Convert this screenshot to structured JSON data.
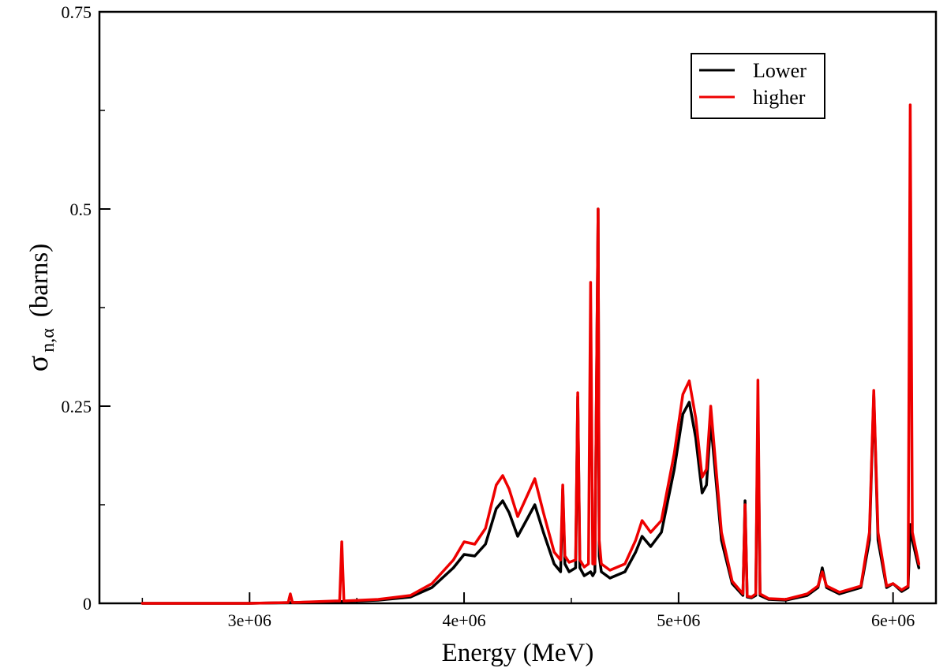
{
  "chart_data": {
    "type": "line",
    "xlabel": "Energy (MeV)",
    "ylabel": {
      "symbol": "σ",
      "subscript": "n,α",
      "unit": "(barns)"
    },
    "xlim": [
      2300000,
      6200000
    ],
    "ylim": [
      0,
      0.75
    ],
    "xticks": [
      3000000,
      4000000,
      5000000,
      6000000
    ],
    "xtick_labels": [
      "3e+06",
      "4e+06",
      "5e+06",
      "6e+06"
    ],
    "yticks": [
      0,
      0.25,
      0.5,
      0.75
    ],
    "ytick_labels": [
      "0",
      "0.25",
      "0.5",
      "0.75"
    ],
    "legend": {
      "placement": "top-right",
      "entries": [
        {
          "label": "Lower",
          "color": "#000000"
        },
        {
          "label": "higher",
          "color": "#ee0000"
        }
      ]
    },
    "series": [
      {
        "name": "Lower",
        "color": "#000000",
        "x": [
          2500000,
          3000000,
          3200000,
          3400000,
          3600000,
          3750000,
          3850000,
          3950000,
          4000000,
          4050000,
          4100000,
          4150000,
          4180000,
          4210000,
          4250000,
          4300000,
          4330000,
          4370000,
          4420000,
          4450000,
          4460000,
          4470000,
          4490000,
          4520000,
          4530000,
          4540000,
          4560000,
          4590000,
          4600000,
          4610000,
          4625000,
          4630000,
          4640000,
          4680000,
          4750000,
          4800000,
          4830000,
          4870000,
          4920000,
          4980000,
          5020000,
          5050000,
          5080000,
          5110000,
          5130000,
          5150000,
          5200000,
          5250000,
          5300000,
          5310000,
          5320000,
          5340000,
          5360000,
          5370000,
          5380000,
          5420000,
          5500000,
          5600000,
          5650000,
          5670000,
          5690000,
          5750000,
          5850000,
          5890000,
          5910000,
          5930000,
          5970000,
          6000000,
          6040000,
          6070000,
          6080000,
          6090000,
          6120000
        ],
        "y": [
          0.0,
          0.0,
          0.001,
          0.002,
          0.004,
          0.008,
          0.02,
          0.045,
          0.062,
          0.06,
          0.075,
          0.12,
          0.13,
          0.115,
          0.085,
          0.11,
          0.125,
          0.09,
          0.05,
          0.04,
          0.145,
          0.05,
          0.04,
          0.045,
          0.262,
          0.045,
          0.035,
          0.04,
          0.035,
          0.04,
          0.5,
          0.06,
          0.04,
          0.032,
          0.04,
          0.065,
          0.085,
          0.072,
          0.09,
          0.17,
          0.24,
          0.255,
          0.21,
          0.14,
          0.15,
          0.23,
          0.08,
          0.025,
          0.01,
          0.13,
          0.008,
          0.007,
          0.01,
          0.25,
          0.01,
          0.005,
          0.004,
          0.01,
          0.02,
          0.045,
          0.02,
          0.012,
          0.02,
          0.08,
          0.265,
          0.08,
          0.02,
          0.025,
          0.015,
          0.02,
          0.1,
          0.08,
          0.045
        ]
      },
      {
        "name": "higher",
        "color": "#ee0000",
        "x": [
          2500000,
          3000000,
          3180000,
          3190000,
          3200000,
          3400000,
          3420000,
          3430000,
          3440000,
          3600000,
          3750000,
          3850000,
          3950000,
          4000000,
          4050000,
          4100000,
          4150000,
          4180000,
          4210000,
          4250000,
          4300000,
          4330000,
          4370000,
          4420000,
          4450000,
          4460000,
          4470000,
          4490000,
          4520000,
          4530000,
          4540000,
          4560000,
          4580000,
          4590000,
          4600000,
          4610000,
          4625000,
          4630000,
          4640000,
          4680000,
          4750000,
          4800000,
          4830000,
          4870000,
          4920000,
          4980000,
          5020000,
          5050000,
          5080000,
          5110000,
          5130000,
          5150000,
          5200000,
          5250000,
          5300000,
          5310000,
          5320000,
          5340000,
          5360000,
          5370000,
          5380000,
          5420000,
          5500000,
          5600000,
          5650000,
          5670000,
          5690000,
          5750000,
          5850000,
          5890000,
          5910000,
          5930000,
          5970000,
          6000000,
          6040000,
          6070000,
          6080000,
          6090000,
          6120000
        ],
        "y": [
          0.0,
          0.0,
          0.001,
          0.012,
          0.001,
          0.003,
          0.003,
          0.078,
          0.003,
          0.005,
          0.01,
          0.025,
          0.055,
          0.078,
          0.075,
          0.095,
          0.15,
          0.162,
          0.145,
          0.11,
          0.14,
          0.158,
          0.115,
          0.065,
          0.055,
          0.15,
          0.06,
          0.052,
          0.055,
          0.267,
          0.055,
          0.046,
          0.05,
          0.407,
          0.05,
          0.05,
          0.5,
          0.08,
          0.05,
          0.042,
          0.05,
          0.08,
          0.105,
          0.09,
          0.105,
          0.19,
          0.265,
          0.282,
          0.235,
          0.16,
          0.17,
          0.25,
          0.09,
          0.028,
          0.012,
          0.125,
          0.009,
          0.008,
          0.012,
          0.283,
          0.012,
          0.006,
          0.005,
          0.012,
          0.022,
          0.04,
          0.022,
          0.014,
          0.022,
          0.09,
          0.27,
          0.09,
          0.022,
          0.025,
          0.017,
          0.022,
          0.632,
          0.09,
          0.05
        ]
      }
    ]
  }
}
